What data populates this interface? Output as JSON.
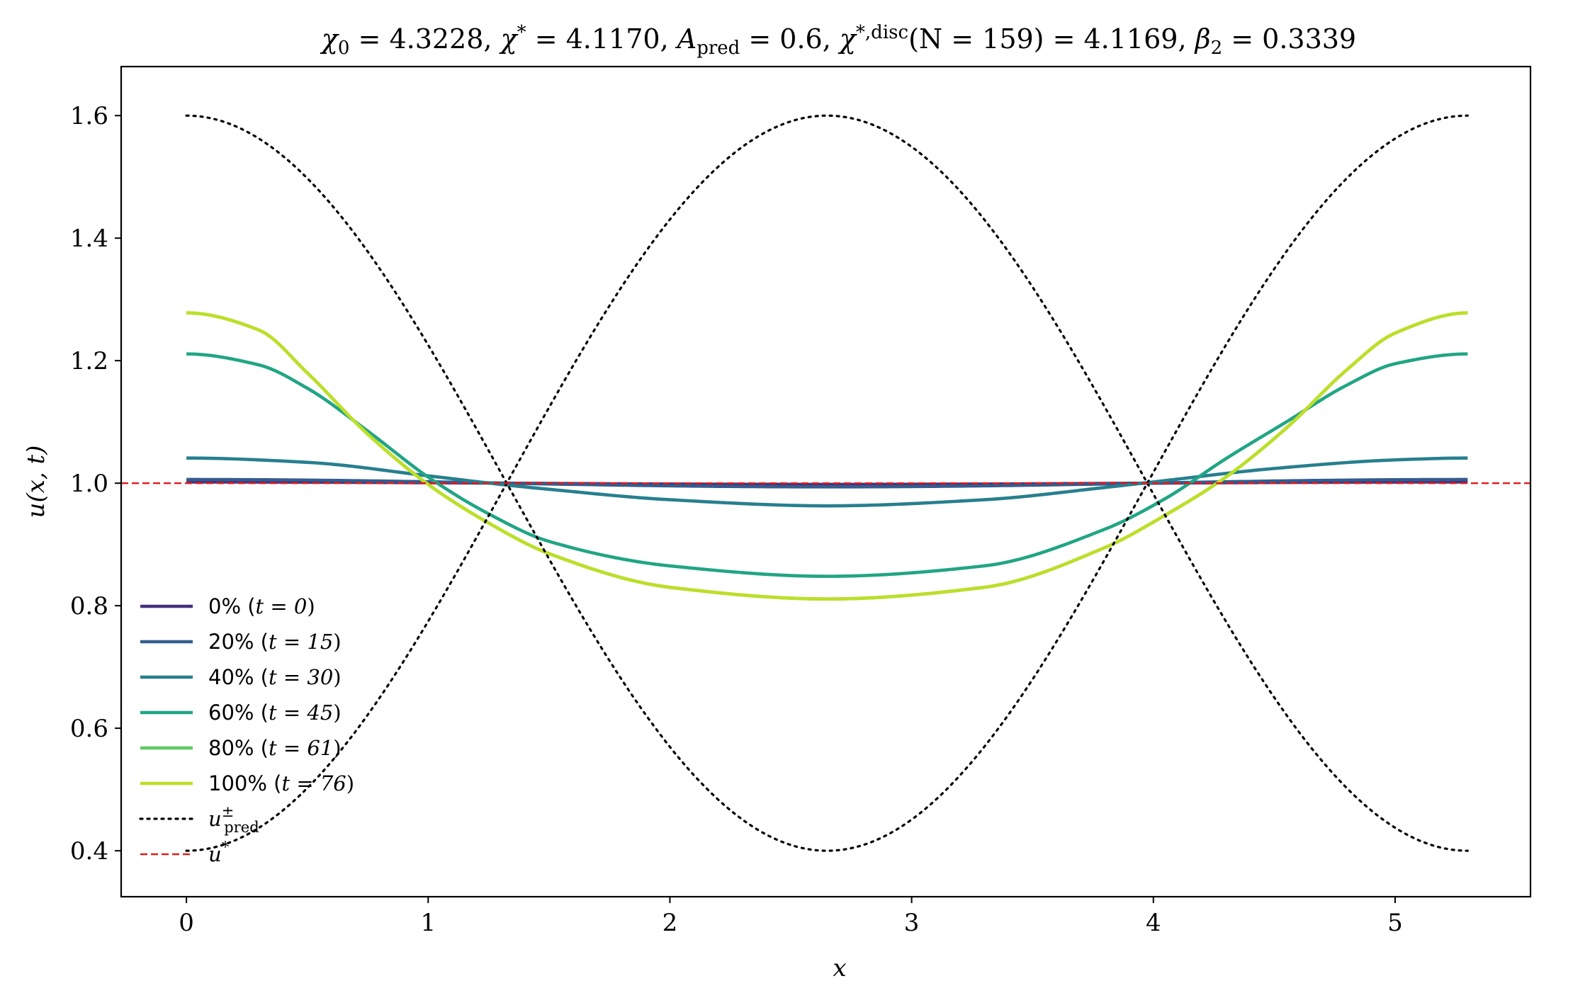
{
  "chart_data": {
    "type": "line",
    "title": "χ₀ = 4.3228,  χ* = 4.1170,  A_pred = 0.6,  χ*,disc(N = 159) = 4.1169,  β₂ = 0.3339",
    "title_parts": {
      "chi0": "χ",
      "chi0_sub": "0",
      "chi0_val": " = 4.3228,  ",
      "chistar": "χ",
      "chistar_sup": "*",
      "chistar_val": " = 4.1170,  ",
      "A": "A",
      "A_sub": "pred",
      "A_val": " = 0.6,  ",
      "chidisc": "χ",
      "chidisc_sup": "*,disc",
      "chidisc_val": "(N = 159) = 4.1169,  ",
      "beta": "β",
      "beta_sub": "2",
      "beta_val": " = 0.3339"
    },
    "xlabel": "x",
    "ylabel": "u(x, t)",
    "xlim": [
      -0.27,
      5.56
    ],
    "ylim": [
      0.325,
      1.68
    ],
    "xticks": [
      0,
      1,
      2,
      3,
      4,
      5
    ],
    "yticks": [
      0.4,
      0.6,
      0.8,
      1.0,
      1.2,
      1.4,
      1.6
    ],
    "xtick_labels": [
      "0",
      "1",
      "2",
      "3",
      "4",
      "5"
    ],
    "ytick_labels": [
      "0.4",
      "0.6",
      "0.8",
      "1.0",
      "1.2",
      "1.4",
      "1.6"
    ],
    "domain_length": 5.3,
    "u_star": 1.0,
    "u_pred_amplitude": 0.6,
    "grid": false,
    "legend_position": "lower-left",
    "series": [
      {
        "name": "0% (t = 0)",
        "label_prefix": "0% (",
        "label_math": "t = 0",
        "color": "#46317e",
        "kind": "cosine",
        "mean": 1.0,
        "amplitude": 0.002
      },
      {
        "name": "20% (t = 15)",
        "label_prefix": "20% (",
        "label_math": "t = 15",
        "color": "#365c8d",
        "kind": "cosine",
        "mean": 1.0,
        "amplitude": 0.006
      },
      {
        "name": "40% (t = 30)",
        "label_prefix": "40% (",
        "label_math": "t = 30",
        "color": "#277f8e",
        "kind": "profile",
        "x": [
          0,
          0.5,
          1.0,
          1.3,
          1.5,
          2.0,
          2.65,
          3.3,
          3.8,
          4.0,
          4.5,
          5.0,
          5.3
        ],
        "y": [
          1.041,
          1.034,
          1.012,
          0.998,
          0.99,
          0.973,
          0.963,
          0.973,
          0.993,
          1.002,
          1.024,
          1.038,
          1.041
        ]
      },
      {
        "name": "60% (t = 45)",
        "label_prefix": "60% (",
        "label_math": "t = 45",
        "color": "#21a585",
        "kind": "profile",
        "x": [
          0,
          0.3,
          0.5,
          0.75,
          1.0,
          1.25,
          1.5,
          2.0,
          2.65,
          3.3,
          3.8,
          4.05,
          4.3,
          4.55,
          4.8,
          5.0,
          5.3
        ],
        "y": [
          1.211,
          1.193,
          1.155,
          1.085,
          1.01,
          0.95,
          0.905,
          0.865,
          0.848,
          0.865,
          0.925,
          0.975,
          1.04,
          1.1,
          1.16,
          1.195,
          1.211
        ]
      },
      {
        "name": "80% (t = 61)",
        "label_prefix": "80% (",
        "label_math": "t = 61",
        "color": "#5ec962",
        "kind": "profile",
        "x": [
          0,
          0.3,
          0.5,
          0.75,
          1.0,
          1.25,
          1.5,
          2.0,
          2.65,
          3.3,
          3.8,
          4.05,
          4.3,
          4.55,
          4.8,
          5.0,
          5.3
        ],
        "y": [
          1.278,
          1.25,
          1.18,
          1.08,
          0.998,
          0.935,
          0.885,
          0.83,
          0.811,
          0.83,
          0.895,
          0.948,
          1.01,
          1.09,
          1.185,
          1.245,
          1.278
        ]
      },
      {
        "name": "100% (t = 76)",
        "label_prefix": "100% (",
        "label_math": "t = 76",
        "color": "#bddf26",
        "kind": "profile",
        "x": [
          0,
          0.3,
          0.5,
          0.75,
          1.0,
          1.25,
          1.5,
          2.0,
          2.65,
          3.3,
          3.8,
          4.05,
          4.3,
          4.55,
          4.8,
          5.0,
          5.3
        ],
        "y": [
          1.278,
          1.25,
          1.18,
          1.08,
          0.998,
          0.935,
          0.885,
          0.83,
          0.811,
          0.83,
          0.895,
          0.948,
          1.01,
          1.09,
          1.185,
          1.245,
          1.278
        ]
      },
      {
        "name": "u±pred",
        "label_main": "u",
        "label_sup": "±",
        "label_sub": "pred",
        "color": "#000000",
        "kind": "envelope",
        "style": "dotted"
      },
      {
        "name": "u*",
        "label_main": "u",
        "label_sup": "*",
        "color": "#e41a1c",
        "kind": "hline",
        "value": 1.0,
        "style": "dashed"
      }
    ]
  }
}
